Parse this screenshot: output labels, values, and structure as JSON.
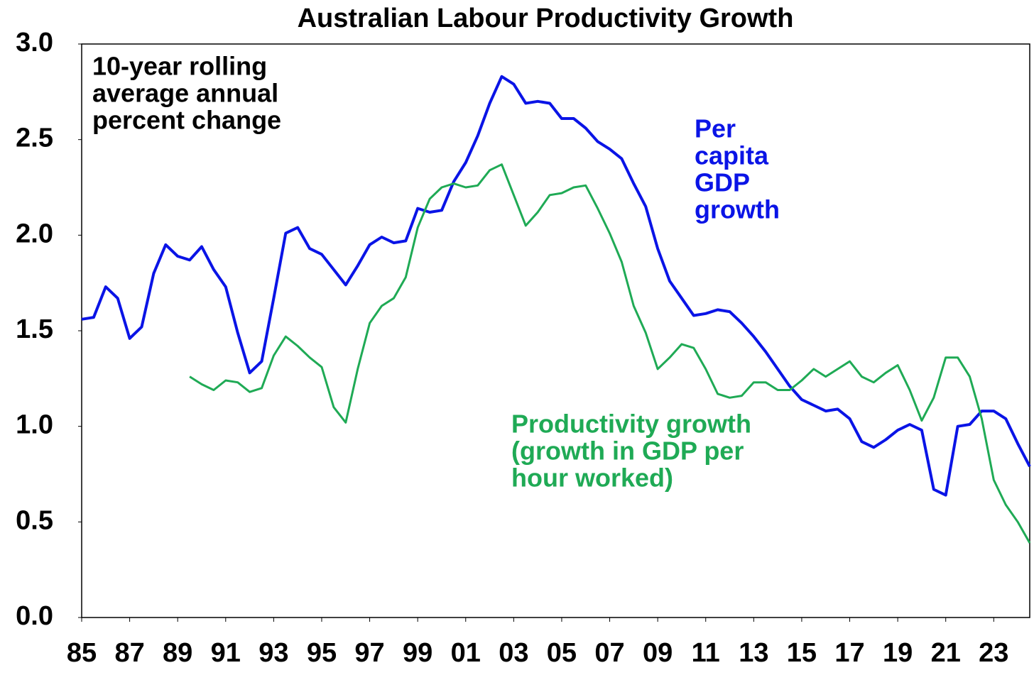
{
  "chart_data": {
    "type": "line",
    "title": "Australian Labour Productivity Growth",
    "note": [
      "10-year rolling",
      "average annual",
      "percent change"
    ],
    "annotations": [
      {
        "lines": [
          "Per",
          "capita",
          "GDP",
          "growth"
        ],
        "color": "#0a14e6"
      },
      {
        "lines": [
          "Productivity growth",
          "(growth in GDP per",
          "hour worked)"
        ],
        "color": "#1faa55"
      }
    ],
    "x": [
      1985,
      1985.5,
      1986,
      1986.5,
      1987,
      1987.5,
      1988,
      1988.5,
      1989,
      1989.5,
      1990,
      1990.5,
      1991,
      1991.5,
      1992,
      1992.5,
      1993,
      1993.5,
      1994,
      1994.5,
      1995,
      1995.5,
      1996,
      1996.5,
      1997,
      1997.5,
      1998,
      1998.5,
      1999,
      1999.5,
      2000,
      2000.5,
      2001,
      2001.5,
      2002,
      2002.5,
      2003,
      2003.5,
      2004,
      2004.5,
      2005,
      2005.5,
      2006,
      2006.5,
      2007,
      2007.5,
      2008,
      2008.5,
      2009,
      2009.5,
      2010,
      2010.5,
      2011,
      2011.5,
      2012,
      2012.5,
      2013,
      2013.5,
      2014,
      2014.5,
      2015,
      2015.5,
      2016,
      2016.5,
      2017,
      2017.5,
      2018,
      2018.5,
      2019,
      2019.5,
      2020,
      2020.5,
      2021,
      2021.5,
      2022,
      2022.5,
      2023,
      2023.5,
      2024,
      2024.5
    ],
    "series": [
      {
        "name": "Per capita GDP growth",
        "color": "#0a14e6",
        "values": [
          1.56,
          1.57,
          1.73,
          1.67,
          1.46,
          1.52,
          1.8,
          1.95,
          1.89,
          1.87,
          1.94,
          1.82,
          1.73,
          1.49,
          1.28,
          1.34,
          1.67,
          2.01,
          2.04,
          1.93,
          1.9,
          1.82,
          1.74,
          1.84,
          1.95,
          1.99,
          1.96,
          1.97,
          2.14,
          2.12,
          2.13,
          2.28,
          2.38,
          2.52,
          2.69,
          2.83,
          2.79,
          2.69,
          2.7,
          2.69,
          2.61,
          2.61,
          2.56,
          2.49,
          2.45,
          2.4,
          2.27,
          2.15,
          1.93,
          1.76,
          1.67,
          1.58,
          1.59,
          1.61,
          1.6,
          1.54,
          1.47,
          1.39,
          1.3,
          1.21,
          1.14,
          1.11,
          1.08,
          1.09,
          1.04,
          0.92,
          0.89,
          0.93,
          0.98,
          1.01,
          0.98,
          0.67,
          0.64,
          1.0,
          1.01,
          1.08,
          1.08,
          1.04,
          0.91,
          0.79
        ]
      },
      {
        "name": "Productivity growth",
        "color": "#1faa55",
        "values": [
          null,
          null,
          null,
          null,
          null,
          null,
          null,
          null,
          null,
          1.26,
          1.22,
          1.19,
          1.24,
          1.23,
          1.18,
          1.2,
          1.37,
          1.47,
          1.42,
          1.36,
          1.31,
          1.1,
          1.02,
          1.3,
          1.54,
          1.63,
          1.67,
          1.78,
          2.04,
          2.19,
          2.25,
          2.27,
          2.25,
          2.26,
          2.34,
          2.37,
          2.21,
          2.05,
          2.12,
          2.21,
          2.22,
          2.25,
          2.26,
          2.14,
          2.01,
          1.86,
          1.63,
          1.49,
          1.3,
          1.36,
          1.43,
          1.41,
          1.3,
          1.17,
          1.15,
          1.16,
          1.23,
          1.23,
          1.19,
          1.19,
          1.24,
          1.3,
          1.26,
          1.3,
          1.34,
          1.26,
          1.23,
          1.28,
          1.32,
          1.19,
          1.03,
          1.15,
          1.36,
          1.36,
          1.26,
          1.04,
          0.72,
          0.59,
          0.5,
          0.39
        ]
      }
    ],
    "xlim": [
      1985,
      2024.5
    ],
    "xticks": [
      {
        "value": 1985,
        "label": "85"
      },
      {
        "value": 1987,
        "label": "87"
      },
      {
        "value": 1989,
        "label": "89"
      },
      {
        "value": 1991,
        "label": "91"
      },
      {
        "value": 1993,
        "label": "93"
      },
      {
        "value": 1995,
        "label": "95"
      },
      {
        "value": 1997,
        "label": "97"
      },
      {
        "value": 1999,
        "label": "99"
      },
      {
        "value": 2001,
        "label": "01"
      },
      {
        "value": 2003,
        "label": "03"
      },
      {
        "value": 2005,
        "label": "05"
      },
      {
        "value": 2007,
        "label": "07"
      },
      {
        "value": 2009,
        "label": "09"
      },
      {
        "value": 2011,
        "label": "11"
      },
      {
        "value": 2013,
        "label": "13"
      },
      {
        "value": 2015,
        "label": "15"
      },
      {
        "value": 2017,
        "label": "17"
      },
      {
        "value": 2019,
        "label": "19"
      },
      {
        "value": 2021,
        "label": "21"
      },
      {
        "value": 2023,
        "label": "23"
      }
    ],
    "ylim": [
      0,
      3
    ],
    "yticks": [
      {
        "value": 0,
        "label": "0.0"
      },
      0.5,
      {
        "value": 1,
        "label": "1.0"
      },
      1.5,
      {
        "value": 2,
        "label": "2.0"
      },
      2.5,
      {
        "value": 3,
        "label": "3.0"
      }
    ]
  }
}
